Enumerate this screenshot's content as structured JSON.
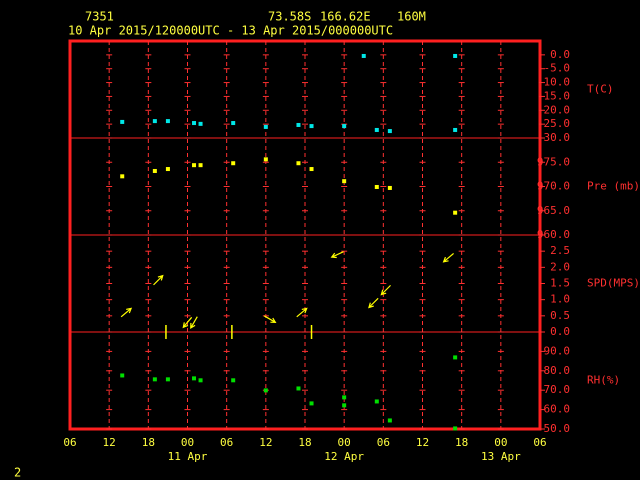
{
  "header": {
    "station": "7351",
    "lat": "73.58S",
    "lon": "166.62E",
    "elev": "160M",
    "period": "10 Apr 2015/120000UTC - 13 Apr 2015/000000UTC",
    "page": "2"
  },
  "chart_data": [
    {
      "type": "scatter",
      "ylabel": "T(C)",
      "color": "#00e8e8",
      "x": [
        8,
        13,
        15,
        19,
        20,
        25,
        30,
        35,
        37,
        42,
        45,
        47,
        49,
        59,
        59
      ],
      "values": [
        -24.2,
        -23.9,
        -23.9,
        -24.6,
        -24.9,
        -24.6,
        -26.0,
        -25.3,
        -25.7,
        -25.7,
        -0.4,
        -27.1,
        -27.5,
        -0.4,
        -27.1
      ],
      "ylim": [
        -30,
        5
      ],
      "yticks": [
        {
          "value": 0,
          "label": "0.0"
        },
        {
          "value": -5,
          "label": "-5.0"
        },
        {
          "value": -10,
          "label": "-10.0"
        },
        {
          "value": -15,
          "label": "-15.0"
        },
        {
          "value": -20,
          "label": "-20.0"
        },
        {
          "value": -25,
          "label": "-25.0"
        },
        {
          "value": -30,
          "label": "-30.0"
        }
      ]
    },
    {
      "type": "scatter",
      "ylabel": "Pre (mb)",
      "color": "#ffff00",
      "x": [
        8,
        13,
        15,
        19,
        20,
        25,
        30,
        35,
        37,
        42,
        47,
        49,
        59
      ],
      "values": [
        972.1,
        973.2,
        973.6,
        974.4,
        974.4,
        974.8,
        975.6,
        974.8,
        973.6,
        971.1,
        969.9,
        969.7,
        964.6
      ],
      "ylim": [
        960,
        980
      ],
      "yticks": [
        {
          "value": 975,
          "label": "975.0"
        },
        {
          "value": 970,
          "label": "970.0"
        },
        {
          "value": 965,
          "label": "965.0"
        },
        {
          "value": 960,
          "label": "960.0"
        }
      ]
    },
    {
      "type": "wind",
      "ylabel": "SPD(MPS)",
      "color": "#ffff00",
      "x": [
        8.6,
        13.5,
        14.7,
        18,
        19,
        24.8,
        30.6,
        35.5,
        37,
        41,
        46.5,
        48.4,
        58
      ],
      "values": [
        0.6,
        1.6,
        0,
        0.3,
        0.3,
        0,
        0.4,
        0.6,
        0,
        2.4,
        0.9,
        1.3,
        2.3
      ],
      "directions": [
        40,
        45,
        null,
        230,
        240,
        null,
        330,
        40,
        null,
        205,
        225,
        225,
        220
      ],
      "ylim": [
        0,
        3
      ],
      "yticks": [
        {
          "value": 2.5,
          "label": "2.5"
        },
        {
          "value": 2,
          "label": "2.0"
        },
        {
          "value": 1.5,
          "label": "1.5"
        },
        {
          "value": 1,
          "label": "1.0"
        },
        {
          "value": 0.5,
          "label": "0.5"
        },
        {
          "value": 0,
          "label": "0.0"
        }
      ]
    },
    {
      "type": "scatter",
      "ylabel": "RH(%)",
      "color": "#00e000",
      "x": [
        8,
        13,
        15,
        19,
        20,
        25,
        30,
        35,
        37,
        42,
        42,
        47,
        49,
        59,
        59
      ],
      "values": [
        77.6,
        75.6,
        75.6,
        76.1,
        75.1,
        75.1,
        69.9,
        70.9,
        63.2,
        66.3,
        62.2,
        64.2,
        54.4,
        86.9,
        50.3
      ],
      "ylim": [
        50,
        100
      ],
      "yticks": [
        {
          "value": 90,
          "label": "90.0"
        },
        {
          "value": 80,
          "label": "80.0"
        },
        {
          "value": 70,
          "label": "70.0"
        },
        {
          "value": 60,
          "label": "60.0"
        },
        {
          "value": 50,
          "label": "50.0"
        }
      ],
      "xlim": [
        0,
        72
      ],
      "xticks": [
        {
          "value": 0,
          "label": "06"
        },
        {
          "value": 6,
          "label": "12"
        },
        {
          "value": 12,
          "label": "18"
        },
        {
          "value": 18,
          "label": "00"
        },
        {
          "value": 24,
          "label": "06"
        },
        {
          "value": 30,
          "label": "12"
        },
        {
          "value": 36,
          "label": "18"
        },
        {
          "value": 42,
          "label": "00"
        },
        {
          "value": 48,
          "label": "06"
        },
        {
          "value": 54,
          "label": "12"
        },
        {
          "value": 60,
          "label": "18"
        },
        {
          "value": 66,
          "label": "00"
        },
        {
          "value": 72,
          "label": "06"
        }
      ],
      "day_labels": [
        {
          "value": 18,
          "label": "11 Apr"
        },
        {
          "value": 42,
          "label": "12 Apr"
        },
        {
          "value": 66,
          "label": "13 Apr"
        }
      ]
    }
  ]
}
